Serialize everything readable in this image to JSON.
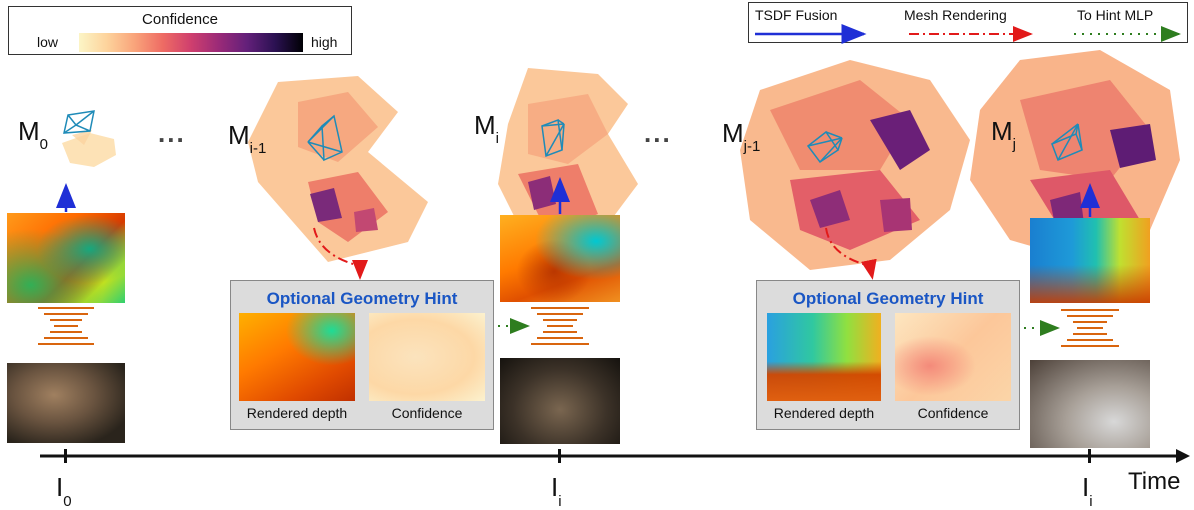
{
  "confidence_legend": {
    "title": "Confidence",
    "low": "low",
    "high": "high"
  },
  "arrow_legend": {
    "tsdf": "TSDF Fusion",
    "mesh": "Mesh Rendering",
    "hint": "To Hint MLP",
    "colors": {
      "tsdf": "#1f2fd6",
      "mesh": "#e21a1a",
      "hint": "#2e7d1f"
    }
  },
  "meshes": [
    {
      "base": "M",
      "sub": "0"
    },
    {
      "base": "M",
      "sub": "i-1"
    },
    {
      "base": "M",
      "sub": "i"
    },
    {
      "base": "M",
      "sub": "j-1"
    },
    {
      "base": "M",
      "sub": "j"
    }
  ],
  "ellipsis": "...",
  "hint_boxes": [
    {
      "title": "Optional Geometry Hint",
      "left_caption": "Rendered depth",
      "right_caption": "Confidence"
    },
    {
      "title": "Optional Geometry Hint",
      "left_caption": "Rendered depth",
      "right_caption": "Confidence"
    }
  ],
  "timeline": {
    "ticks": [
      {
        "base": "I",
        "sub": "0"
      },
      {
        "base": "I",
        "sub": "i"
      },
      {
        "base": "I",
        "sub": "i"
      }
    ],
    "axis_label": "Time"
  }
}
